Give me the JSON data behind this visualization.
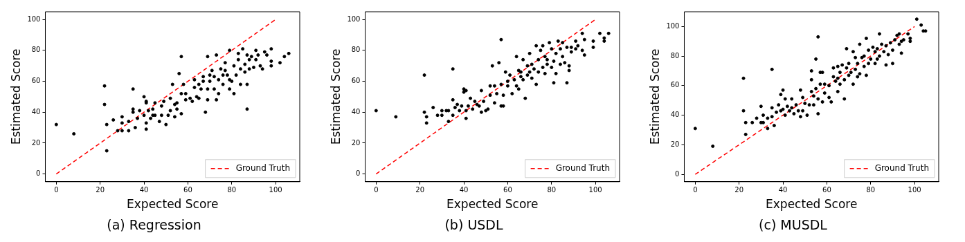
{
  "chart_data": [
    {
      "type": "scatter",
      "title": "(a) Regression",
      "xlabel": "Expected Score",
      "ylabel": "Estimated Score",
      "xlim": [
        -5,
        111
      ],
      "ylim": [
        -5,
        105
      ],
      "xticks": [
        0,
        20,
        40,
        60,
        80,
        100
      ],
      "yticks": [
        0,
        20,
        40,
        60,
        80,
        100
      ],
      "legend": "bottom right",
      "series": [
        {
          "color": "#000000",
          "marker": "circle",
          "x": [
            0,
            8,
            22,
            22,
            23,
            23,
            26,
            28,
            30,
            30,
            30,
            33,
            33,
            35,
            35,
            35,
            36,
            37,
            38,
            40,
            40,
            41,
            41,
            41,
            41,
            42,
            43,
            44,
            44,
            45,
            45,
            47,
            48,
            48,
            49,
            50,
            51,
            52,
            52,
            53,
            54,
            54,
            55,
            55,
            56,
            57,
            57,
            57,
            58,
            59,
            59,
            61,
            62,
            63,
            63,
            64,
            65,
            65,
            66,
            67,
            67,
            68,
            69,
            69,
            69,
            70,
            70,
            71,
            72,
            72,
            73,
            73,
            74,
            74,
            75,
            76,
            76,
            77,
            77,
            78,
            79,
            79,
            79,
            80,
            81,
            81,
            82,
            83,
            83,
            84,
            84,
            85,
            86,
            86,
            87,
            87,
            87,
            88,
            88,
            89,
            90,
            91,
            91,
            92,
            93,
            94,
            95,
            96,
            98,
            98,
            98,
            102,
            104,
            106
          ],
          "values": [
            32,
            26,
            57,
            45,
            32,
            15,
            35,
            28,
            28,
            37,
            33,
            28,
            34,
            55,
            42,
            40,
            30,
            36,
            41,
            50,
            38,
            29,
            47,
            46,
            33,
            41,
            36,
            42,
            38,
            46,
            38,
            34,
            38,
            44,
            47,
            32,
            38,
            41,
            49,
            58,
            45,
            37,
            46,
            42,
            65,
            76,
            39,
            52,
            58,
            48,
            52,
            49,
            47,
            56,
            61,
            50,
            58,
            49,
            55,
            60,
            63,
            40,
            55,
            76,
            48,
            64,
            60,
            67,
            55,
            63,
            77,
            48,
            61,
            52,
            68,
            64,
            58,
            72,
            67,
            64,
            61,
            55,
            80,
            60,
            52,
            70,
            64,
            78,
            74,
            68,
            58,
            81,
            66,
            71,
            77,
            42,
            58,
            74,
            68,
            76,
            69,
            80,
            74,
            77,
            70,
            68,
            79,
            77,
            81,
            70,
            73,
            72,
            76,
            78
          ]
        },
        {
          "type": "line",
          "name": "Ground Truth",
          "color": "#ff0000",
          "marker": "none",
          "line_style": "dashed",
          "x": [
            0,
            100
          ],
          "values": [
            0,
            100
          ]
        }
      ]
    },
    {
      "type": "scatter",
      "title": "(b) USDL",
      "xlabel": "Expected Score",
      "ylabel": "Estimated Score",
      "xlim": [
        -5,
        111
      ],
      "ylim": [
        -5,
        105
      ],
      "xticks": [
        0,
        20,
        40,
        60,
        80,
        100
      ],
      "yticks": [
        0,
        20,
        40,
        60,
        80,
        100
      ],
      "legend": "bottom right",
      "series": [
        {
          "color": "#000000",
          "marker": "circle",
          "x": [
            0,
            9,
            22,
            22,
            23,
            23,
            26,
            28,
            30,
            30,
            32,
            33,
            33,
            35,
            35,
            35,
            36,
            37,
            38,
            39,
            40,
            40,
            41,
            41,
            41,
            42,
            43,
            44,
            45,
            46,
            47,
            48,
            48,
            49,
            50,
            51,
            52,
            52,
            53,
            54,
            54,
            55,
            56,
            57,
            57,
            57,
            58,
            58,
            59,
            60,
            60,
            61,
            62,
            63,
            64,
            64,
            65,
            65,
            66,
            66,
            67,
            67,
            68,
            69,
            69,
            70,
            70,
            71,
            71,
            72,
            73,
            73,
            74,
            74,
            75,
            76,
            76,
            77,
            77,
            78,
            78,
            79,
            80,
            80,
            81,
            81,
            82,
            82,
            83,
            84,
            84,
            85,
            85,
            86,
            87,
            87,
            88,
            88,
            89,
            89,
            91,
            91,
            92,
            94,
            94,
            95,
            95,
            99,
            99,
            102,
            104,
            104,
            106
          ],
          "values": [
            41,
            37,
            64,
            40,
            37,
            33,
            43,
            38,
            41,
            38,
            41,
            41,
            34,
            48,
            68,
            38,
            43,
            45,
            41,
            44,
            53,
            55,
            54,
            41,
            36,
            44,
            49,
            42,
            47,
            45,
            44,
            40,
            54,
            47,
            41,
            42,
            57,
            51,
            70,
            46,
            57,
            52,
            72,
            44,
            87,
            58,
            51,
            44,
            66,
            57,
            60,
            64,
            52,
            61,
            57,
            76,
            67,
            55,
            63,
            66,
            74,
            61,
            49,
            70,
            64,
            78,
            66,
            71,
            62,
            68,
            58,
            83,
            66,
            74,
            80,
            83,
            69,
            76,
            65,
            71,
            74,
            85,
            69,
            81,
            59,
            73,
            78,
            65,
            86,
            71,
            81,
            76,
            85,
            72,
            82,
            59,
            67,
            70,
            79,
            82,
            81,
            86,
            83,
            91,
            80,
            77,
            87,
            86,
            82,
            91,
            88,
            86,
            91
          ]
        },
        {
          "type": "line",
          "name": "Ground Truth",
          "color": "#ff0000",
          "marker": "none",
          "line_style": "dashed",
          "x": [
            0,
            100
          ],
          "values": [
            0,
            100
          ]
        }
      ]
    },
    {
      "type": "scatter",
      "title": "(c) MUSDL",
      "xlabel": "Expected Score",
      "ylabel": "Estimated Score",
      "xlim": [
        -5,
        111
      ],
      "ylim": [
        -5,
        110
      ],
      "xticks": [
        0,
        20,
        40,
        60,
        80,
        100
      ],
      "yticks": [
        0,
        20,
        40,
        60,
        80,
        100
      ],
      "legend": "bottom right",
      "series": [
        {
          "color": "#000000",
          "marker": "circle",
          "x": [
            0,
            8,
            22,
            22,
            23,
            23,
            26,
            28,
            30,
            30,
            31,
            31,
            33,
            33,
            35,
            35,
            35,
            36,
            37,
            38,
            39,
            39,
            40,
            40,
            41,
            41,
            42,
            43,
            44,
            44,
            45,
            46,
            47,
            48,
            48,
            49,
            49,
            50,
            51,
            52,
            53,
            53,
            53,
            54,
            54,
            55,
            55,
            56,
            56,
            56,
            57,
            57,
            58,
            58,
            59,
            59,
            61,
            61,
            62,
            63,
            63,
            64,
            65,
            65,
            65,
            66,
            66,
            67,
            68,
            68,
            69,
            69,
            70,
            70,
            71,
            72,
            72,
            73,
            73,
            74,
            74,
            75,
            75,
            76,
            77,
            77,
            78,
            78,
            79,
            79,
            80,
            81,
            82,
            82,
            83,
            83,
            84,
            84,
            85,
            86,
            87,
            87,
            88,
            89,
            90,
            90,
            91,
            92,
            93,
            93,
            94,
            94,
            95,
            97,
            98,
            98,
            101,
            103,
            104,
            105
          ],
          "values": [
            31,
            19,
            43,
            65,
            35,
            27,
            35,
            38,
            46,
            35,
            40,
            35,
            38,
            31,
            71,
            45,
            39,
            33,
            42,
            47,
            43,
            54,
            57,
            44,
            40,
            51,
            46,
            43,
            51,
            45,
            41,
            47,
            43,
            39,
            57,
            52,
            43,
            48,
            40,
            47,
            70,
            64,
            56,
            47,
            53,
            58,
            78,
            51,
            93,
            41,
            69,
            61,
            49,
            69,
            55,
            61,
            60,
            52,
            49,
            66,
            72,
            63,
            65,
            56,
            73,
            61,
            69,
            74,
            51,
            64,
            85,
            72,
            67,
            75,
            69,
            61,
            83,
            71,
            79,
            66,
            75,
            88,
            68,
            79,
            73,
            80,
            67,
            92,
            75,
            84,
            78,
            86,
            75,
            83,
            78,
            85,
            95,
            80,
            88,
            83,
            74,
            87,
            81,
            89,
            84,
            75,
            91,
            94,
            88,
            95,
            90,
            82,
            91,
            95,
            92,
            90,
            105,
            101,
            97,
            97
          ]
        },
        {
          "type": "line",
          "name": "Ground Truth",
          "color": "#ff0000",
          "marker": "none",
          "line_style": "dashed",
          "x": [
            0,
            100
          ],
          "values": [
            0,
            100
          ]
        }
      ]
    }
  ]
}
